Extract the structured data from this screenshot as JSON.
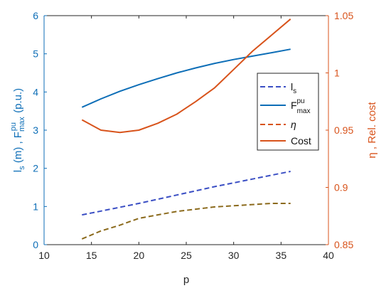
{
  "chart_data": {
    "type": "line",
    "xlabel": "p",
    "ylabel_left": "l_s (m) , F_max^pu (p.u.)",
    "ylabel_right": "η , Rel. cost",
    "xlim": [
      10,
      40
    ],
    "ylim_left": [
      0,
      6
    ],
    "ylim_right": [
      0.85,
      1.05
    ],
    "xticks": [
      "10",
      "15",
      "20",
      "25",
      "30",
      "35",
      "40"
    ],
    "yticks_left": [
      "0",
      "1",
      "2",
      "3",
      "4",
      "5",
      "6"
    ],
    "yticks_right": [
      "0.85",
      "0.9",
      "0.95",
      "1",
      "1.05"
    ],
    "grid": false,
    "legend_position": "right-center",
    "x": [
      14,
      16,
      18,
      20,
      22,
      24,
      26,
      28,
      30,
      32,
      34,
      36
    ],
    "series": [
      {
        "name": "l_s",
        "axis": "left",
        "style": "dashed",
        "color": "#3b4fc4",
        "values": [
          0.78,
          0.88,
          0.98,
          1.08,
          1.19,
          1.3,
          1.41,
          1.52,
          1.62,
          1.72,
          1.82,
          1.92
        ]
      },
      {
        "name": "F_max^pu",
        "axis": "left",
        "style": "solid",
        "color": "#0d6eb7",
        "values": [
          3.6,
          3.82,
          4.02,
          4.19,
          4.35,
          4.5,
          4.63,
          4.75,
          4.85,
          4.94,
          5.03,
          5.12
        ]
      },
      {
        "name": "η",
        "axis": "right",
        "style": "dashed",
        "color": "#8b6a1c",
        "values": [
          0.855,
          0.862,
          0.867,
          0.873,
          0.876,
          0.879,
          0.881,
          0.883,
          0.884,
          0.885,
          0.886,
          0.886
        ]
      },
      {
        "name": "Cost",
        "axis": "right",
        "style": "solid",
        "color": "#d8531b",
        "values": [
          0.959,
          0.95,
          0.948,
          0.95,
          0.956,
          0.964,
          0.975,
          0.987,
          1.003,
          1.019,
          1.033,
          1.047
        ]
      }
    ]
  },
  "colors": {
    "left_axis": "#0d6eb7",
    "right_axis": "#d8531b",
    "frame": "#262626"
  }
}
